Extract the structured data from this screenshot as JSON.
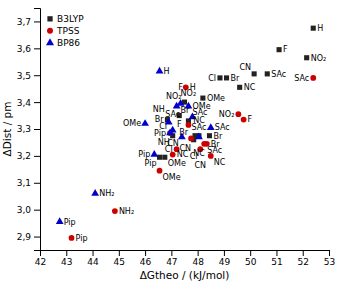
{
  "chart_data": {
    "type": "scatter",
    "x_label": "ΔGtheo / (kJ/mol)",
    "y_label": "ΔDist / pm",
    "xlim": [
      42,
      53
    ],
    "ylim": [
      2.85,
      3.75
    ],
    "xticks": [
      42,
      43,
      44,
      45,
      46,
      47,
      48,
      49,
      50,
      51,
      52,
      53
    ],
    "yticks": [
      {
        "value": 2.9,
        "label": "2,9"
      },
      {
        "value": 3.0,
        "label": "3,0"
      },
      {
        "value": 3.1,
        "label": "3,1"
      },
      {
        "value": 3.2,
        "label": "3,2"
      },
      {
        "value": 3.3,
        "label": "3,3"
      },
      {
        "value": 3.4,
        "label": "3,4"
      },
      {
        "value": 3.5,
        "label": "3,5"
      },
      {
        "value": 3.6,
        "label": "3,6"
      },
      {
        "value": 3.7,
        "label": "3,7"
      }
    ],
    "grid": false,
    "legend": "upper left",
    "series": [
      {
        "name": "B3LYP",
        "color": "#222222",
        "marker": "square",
        "x": [
          46.55,
          46.75,
          47.05,
          47.3,
          47.5,
          47.65,
          47.9,
          47.85,
          48.05,
          48.2,
          48.45,
          48.85,
          49.1,
          49.6,
          50.15,
          50.65,
          51.1,
          52.15,
          52.4,
          46.85
        ],
        "values": [
          3.195,
          3.195,
          3.275,
          3.35,
          3.4,
          3.33,
          3.275,
          3.26,
          3.275,
          3.415,
          3.275,
          3.49,
          3.49,
          3.455,
          3.505,
          3.505,
          3.595,
          3.565,
          3.675,
          3.335
        ],
        "labels": [
          "Pip",
          "OMe",
          "NH",
          "F",
          "NO₂",
          "SAc",
          "CN",
          "Cl",
          "NC",
          "OMe",
          "Br",
          "Cl",
          "Br",
          "NC",
          "CN",
          "SAc",
          "F",
          "NO₂",
          "H",
          "Br"
        ]
      },
      {
        "name": "TPSS",
        "color": "#cc0000",
        "marker": "circle",
        "x": [
          43.2,
          44.85,
          46.55,
          46.95,
          47.05,
          47.2,
          47.55,
          47.65,
          47.75,
          48.1,
          48.25,
          48.35,
          48.5,
          49.55,
          49.75,
          52.4
        ],
        "values": [
          2.895,
          2.995,
          3.145,
          3.285,
          3.205,
          3.225,
          3.455,
          3.315,
          3.265,
          3.225,
          3.245,
          3.245,
          3.2,
          3.355,
          3.335,
          3.49
        ],
        "labels": [
          "Pip",
          "NH₂",
          "OMe",
          "Pip",
          "NC",
          "Cl",
          "H",
          "SAc",
          "Br",
          "CN",
          "SAc",
          "Br",
          "NC",
          "NO₂",
          "F",
          "SAc"
        ]
      },
      {
        "name": "BP86",
        "color": "#0000cc",
        "marker": "triangle",
        "x": [
          42.75,
          44.1,
          46.0,
          46.35,
          46.55,
          46.9,
          46.95,
          47.05,
          47.2,
          47.35,
          47.4,
          47.65,
          47.8,
          48.05,
          48.5
        ],
        "values": [
          2.955,
          3.06,
          3.32,
          3.205,
          3.515,
          3.325,
          3.285,
          3.295,
          3.385,
          3.395,
          3.27,
          3.385,
          3.345,
          3.27,
          3.305
        ],
        "labels": [
          "Pip",
          "NH₂",
          "OMe",
          "Pip",
          "H",
          "NH",
          "Cl",
          "SAc",
          "NO₂",
          "F",
          "CN",
          "OMe",
          "Br",
          "NC",
          "SAc"
        ]
      }
    ]
  }
}
